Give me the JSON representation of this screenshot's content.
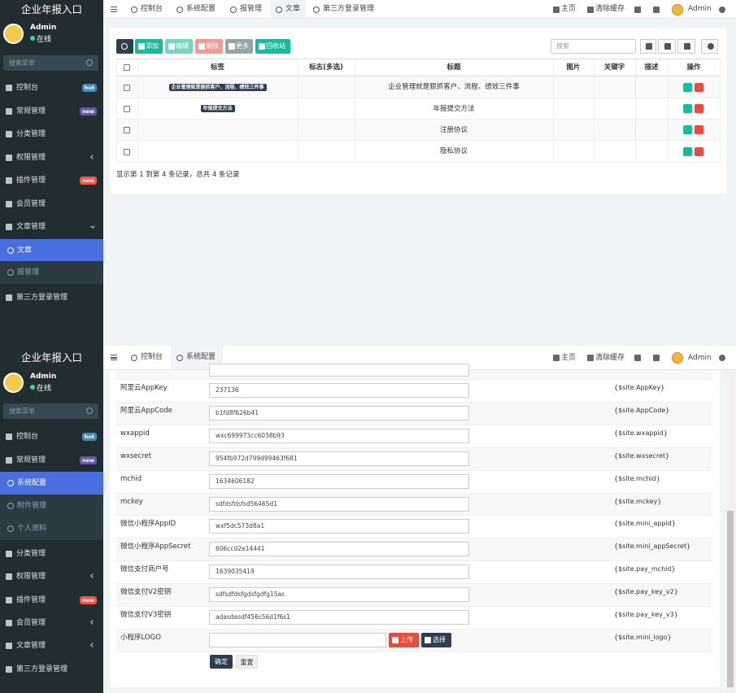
{
  "screens": [
    {
      "brand": "企业年报入口",
      "user": {
        "name": "Admin",
        "status": "在线"
      },
      "search_placeholder": "搜索菜单",
      "menu": [
        {
          "label": "控制台",
          "badge": {
            "text": "hot",
            "color": "#3c8dbc"
          }
        },
        {
          "label": "常规管理",
          "badge": {
            "text": "new",
            "color": "#605ca8"
          }
        },
        {
          "label": "分类管理"
        },
        {
          "label": "权限管理",
          "arrow": "left"
        },
        {
          "label": "插件管理",
          "badge": {
            "text": "new",
            "color": "#f75444"
          }
        },
        {
          "label": "会员管理"
        },
        {
          "label": "文章管理",
          "arrow": "down"
        },
        {
          "label": "文章",
          "sub": true,
          "active": true
        },
        {
          "label": "报管理",
          "sub": true
        },
        {
          "label": "第三方登录管理"
        }
      ],
      "tabs": [
        {
          "label": "控制台"
        },
        {
          "label": "系统配置"
        },
        {
          "label": "报管理"
        },
        {
          "label": "文章",
          "active": true
        },
        {
          "label": "第三方登录管理"
        }
      ],
      "top_right": {
        "home": "主页",
        "clear_cache": "清除缓存",
        "user": "Admin"
      },
      "toolbar": [
        {
          "label": "添加",
          "color": "#18bc9c"
        },
        {
          "label": "编辑",
          "color": "#74d7c3"
        },
        {
          "label": "删除",
          "color": "#f59a90"
        },
        {
          "label": "更多",
          "color": "#95a5a6"
        },
        {
          "label": "回收站",
          "color": "#18bc9c"
        }
      ],
      "table": {
        "search_placeholder": "搜索",
        "columns": [
          "标签",
          "标志(多选)",
          "标题",
          "图片",
          "关键字",
          "描述",
          "操作"
        ],
        "rows": [
          {
            "tag": "企业管理就是狠抓客户、流程、绩效三件事",
            "title": "企业管理就是狠抓客户、流程、绩效三件事"
          },
          {
            "tag": "年报提交方法",
            "title": "年报提交方法"
          },
          {
            "title": "注册协议"
          },
          {
            "title": "隐私协议"
          }
        ]
      },
      "summary": "显示第 1 到第 4 条记录，总共 4 条记录"
    },
    {
      "brand": "企业年报入口",
      "user": {
        "name": "Admin",
        "status": "在线"
      },
      "search_placeholder": "搜索菜单",
      "menu": [
        {
          "label": "控制台",
          "badge": {
            "text": "hot",
            "color": "#3c8dbc"
          }
        },
        {
          "label": "常规管理",
          "badge": {
            "text": "new",
            "color": "#605ca8"
          }
        },
        {
          "label": "系统配置",
          "sub": true,
          "active": true
        },
        {
          "label": "附件管理",
          "sub": true
        },
        {
          "label": "个人资料",
          "sub": true
        },
        {
          "label": "分类管理"
        },
        {
          "label": "权限管理",
          "arrow": "left"
        },
        {
          "label": "插件管理",
          "badge": {
            "text": "new",
            "color": "#f75444"
          }
        },
        {
          "label": "会员管理",
          "arrow": "left"
        },
        {
          "label": "文章管理",
          "arrow": "left"
        },
        {
          "label": "第三方登录管理"
        }
      ],
      "tabs": [
        {
          "label": "控制台"
        },
        {
          "label": "系统配置",
          "active": true
        }
      ],
      "top_right": {
        "home": "主页",
        "clear_cache": "清除缓存",
        "user": "Admin"
      },
      "form": {
        "rows": [
          {
            "label": "阿里云AppKey",
            "value": "237136",
            "variable": "{$site.AppKey}"
          },
          {
            "label": "阿里云AppCode",
            "value": "b1fd8f626b41",
            "variable": "{$site.AppCode}"
          },
          {
            "label": "wxappid",
            "value": "wxc699973cc6038b93",
            "variable": "{$site.wxappid}"
          },
          {
            "label": "wxsecret",
            "value": "954fb972d799d99463f681",
            "variable": "{$site.wxsecret}"
          },
          {
            "label": "mchid",
            "value": "1634606182",
            "variable": "{$site.mchid}"
          },
          {
            "label": "mckey",
            "value": "sdfdsfdsfsd56465d1",
            "variable": "{$site.mckey}"
          },
          {
            "label": "微信小程序AppID",
            "value": "wxf5dc573d8a1",
            "variable": "{$site.mini_appid}"
          },
          {
            "label": "微信小程序AppSecret",
            "value": "606ccd2e14441",
            "variable": "{$site.mini_appSecret}"
          },
          {
            "label": "微信支付商户号",
            "value": "1639035419",
            "variable": "{$site.pay_mchid}"
          },
          {
            "label": "微信支付V2密钥",
            "value": "sdfsdfdsfgdsfgdfg15as",
            "variable": "{$site.pay_key_v2}"
          },
          {
            "label": "微信支付V3密钥",
            "value": "adasdasdf456s56d1f6s1",
            "variable": "{$site.pay_key_v3}"
          },
          {
            "label": "小程序LOGO",
            "variable": "{$site.mini_logo}",
            "upload": "上传",
            "choose": "选择"
          }
        ],
        "submit": "确定",
        "reset": "重置"
      }
    }
  ]
}
